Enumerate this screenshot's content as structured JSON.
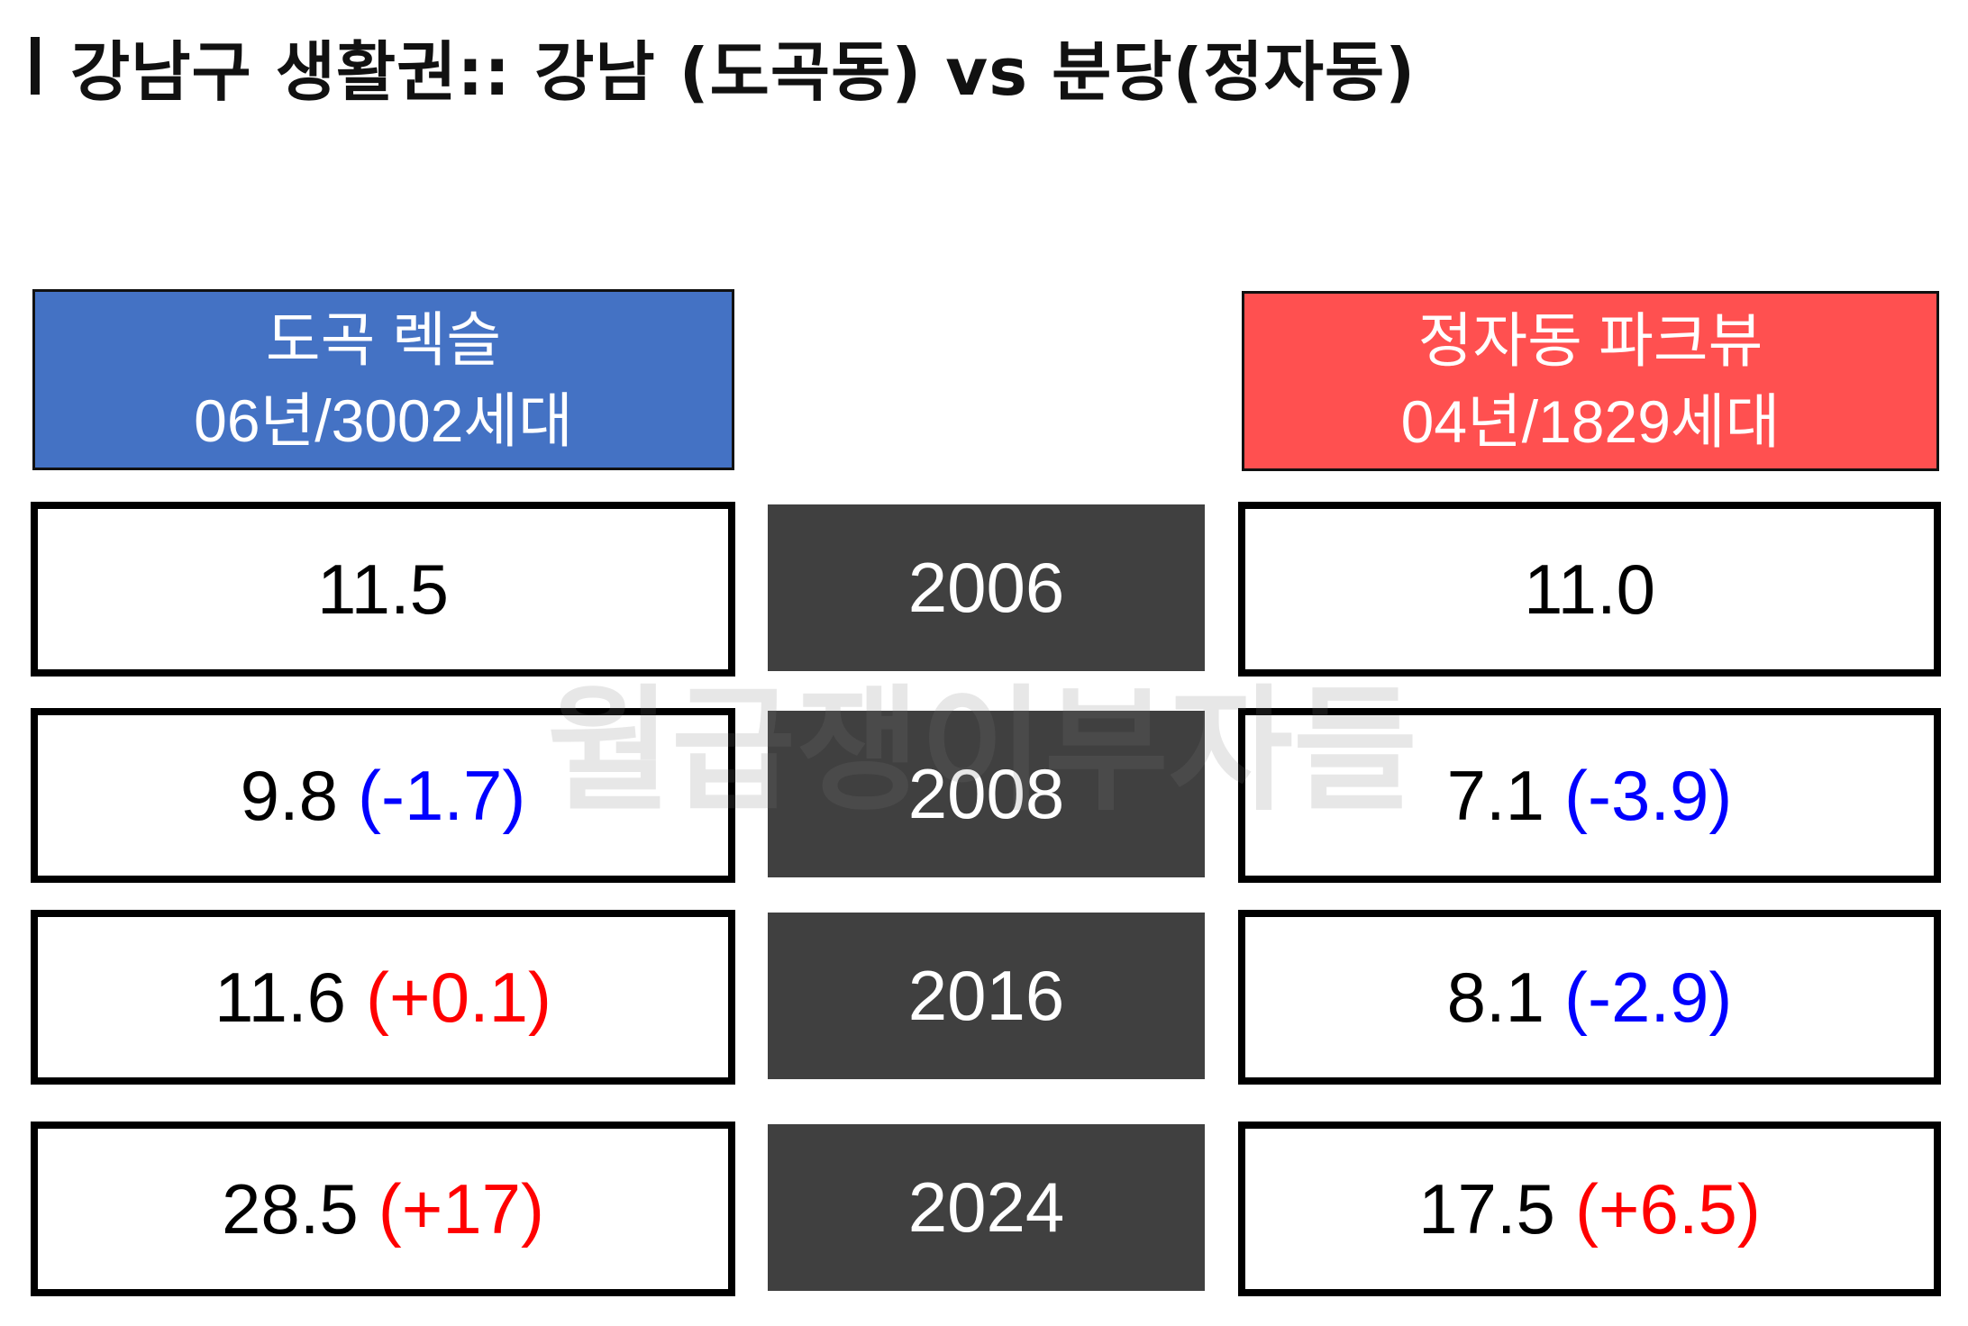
{
  "title": "강남구 생활권:: 강남 (도곡동) vs 분당(정자동)",
  "watermark": "월급쟁이부자들",
  "left_header": {
    "line1": "도곡 렉슬",
    "line2": "06년/3002세대",
    "color": "#4472C4"
  },
  "right_header": {
    "line1": "정자동 파크뷰",
    "line2": "04년/1829세대",
    "color": "#FF5050"
  },
  "colors": {
    "decrease": "#0000FF",
    "increase": "#FF0000",
    "year_bg": "#404040"
  },
  "rows": [
    {
      "year": "2006",
      "left": {
        "value": "11.5",
        "delta": ""
      },
      "right": {
        "value": "11.0",
        "delta": ""
      }
    },
    {
      "year": "2008",
      "left": {
        "value": "9.8",
        "delta": "(-1.7)"
      },
      "right": {
        "value": "7.1",
        "delta": "(-3.9)"
      }
    },
    {
      "year": "2016",
      "left": {
        "value": "11.6",
        "delta": "(+0.1)"
      },
      "right": {
        "value": "8.1",
        "delta": "(-2.9)"
      }
    },
    {
      "year": "2024",
      "left": {
        "value": "28.5",
        "delta": "(+17)"
      },
      "right": {
        "value": "17.5",
        "delta": "(+6.5)"
      }
    }
  ]
}
